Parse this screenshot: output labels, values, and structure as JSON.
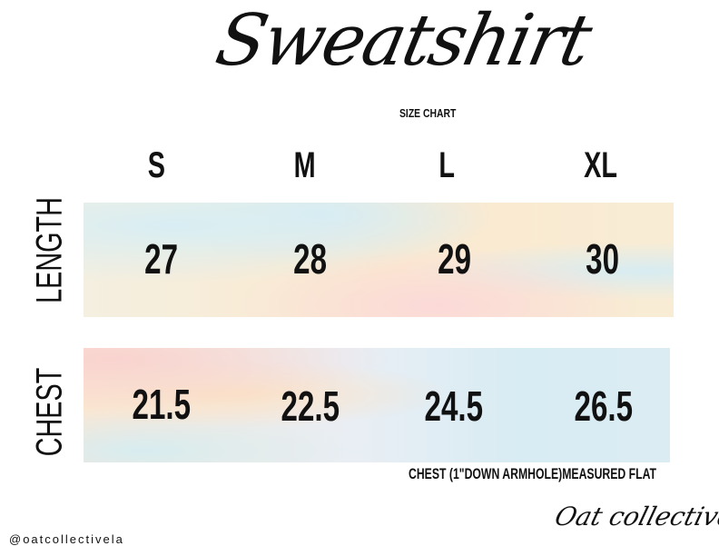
{
  "header": {
    "title": "Sweatshirt",
    "subtitle": "SIZE CHART"
  },
  "sizes": [
    "S",
    "M",
    "L",
    "XL"
  ],
  "rows": [
    {
      "label": "LENGTH",
      "values": [
        "27",
        "28",
        "29",
        "30"
      ]
    },
    {
      "label": "CHEST",
      "values": [
        "21.5",
        "22.5",
        "24.5",
        "26.5"
      ]
    }
  ],
  "note": "CHEST (1\"DOWN ARMHOLE)MEASURED FLAT",
  "footer": {
    "handle": "@oatcollectivela",
    "brand": "Oat collective"
  }
}
